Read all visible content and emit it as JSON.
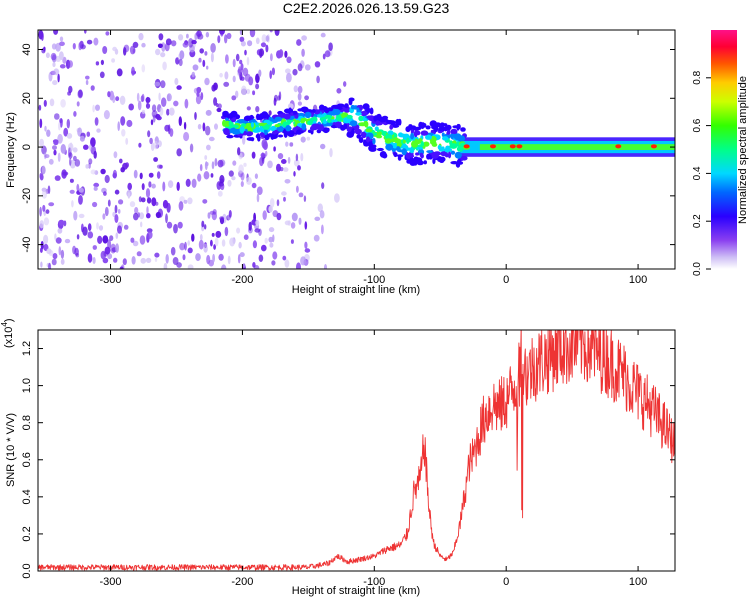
{
  "title": "C2E2.2026.026.13.59.G23",
  "chart_data": [
    {
      "type": "heatmap",
      "name": "spectrogram",
      "xlabel": "Height of straight line (km)",
      "ylabel": "Frequency (Hz)",
      "xlim": [
        -355,
        128
      ],
      "ylim": [
        -50,
        48
      ],
      "xticks": [
        -300,
        -200,
        -100,
        0,
        100
      ],
      "yticks": [
        -40,
        -20,
        0,
        20,
        40
      ],
      "colorbar": {
        "label": "Normalized spectral amplitude",
        "range": [
          0.0,
          1.0
        ],
        "ticks": [
          0.0,
          0.2,
          0.4,
          0.6,
          0.8
        ],
        "ticklabels": [
          "0.0",
          "0.2",
          "0.4",
          "0.6",
          "0.8"
        ]
      },
      "description_regions": [
        {
          "x_range": [
            -355,
            -150
          ],
          "freq_range": [
            -50,
            48
          ],
          "amplitude": 0.05,
          "pattern": "scattered noise"
        },
        {
          "x_range": [
            -215,
            -35
          ],
          "freq_range": [
            -10,
            15
          ],
          "amplitude": 0.45,
          "pattern": "wandering band"
        },
        {
          "x_range": [
            -35,
            128
          ],
          "freq_range": [
            -2,
            3
          ],
          "amplitude": 0.7,
          "pattern": "steady tone near 0 Hz"
        }
      ],
      "ridge": {
        "x": [
          -215,
          -190,
          -165,
          -145,
          -130,
          -115,
          -100,
          -85,
          -70,
          -55,
          -40,
          -30,
          -10,
          10,
          40,
          80,
          128
        ],
        "freq": [
          9,
          8,
          10,
          11,
          12,
          13,
          6,
          3,
          1,
          2,
          1,
          0,
          1,
          0,
          0,
          0,
          0
        ]
      }
    },
    {
      "type": "line",
      "name": "snr",
      "xlabel": "Height of straight line (km)",
      "ylabel": "SNR (10 * V/V)",
      "scale_label": "(x10",
      "scale_exp": "4",
      "xlim": [
        -355,
        128
      ],
      "ylim": [
        0.0,
        1.3
      ],
      "xticks": [
        -300,
        -200,
        -100,
        0,
        100
      ],
      "yticks": [
        0.0,
        0.2,
        0.4,
        0.6,
        0.8,
        1.0,
        1.2
      ],
      "yticklabels": [
        "0.0",
        "0.2",
        "0.4",
        "0.6",
        "0.8",
        "1.0",
        "1.2"
      ],
      "series": [
        {
          "name": "SNR",
          "color": "#ee3333",
          "x": [
            -355,
            -300,
            -250,
            -200,
            -150,
            -135,
            -128,
            -120,
            -100,
            -90,
            -80,
            -75,
            -70,
            -65,
            -62,
            -60,
            -58,
            -55,
            -50,
            -45,
            -40,
            -35,
            -30,
            -28,
            -25,
            -20,
            -15,
            -10,
            -5,
            0,
            5,
            10,
            12,
            15,
            20,
            30,
            40,
            50,
            55,
            60,
            70,
            80,
            90,
            100,
            110,
            120,
            128
          ],
          "y": [
            0.02,
            0.02,
            0.02,
            0.02,
            0.02,
            0.04,
            0.08,
            0.05,
            0.08,
            0.12,
            0.14,
            0.2,
            0.42,
            0.5,
            0.7,
            0.48,
            0.3,
            0.15,
            0.08,
            0.06,
            0.1,
            0.25,
            0.48,
            0.58,
            0.62,
            0.75,
            0.85,
            0.9,
            0.88,
            0.92,
            0.98,
            1.05,
            1.22,
            1.05,
            1.1,
            1.15,
            1.2,
            1.22,
            1.24,
            1.22,
            1.18,
            1.12,
            1.05,
            0.96,
            0.88,
            0.78,
            0.68
          ]
        }
      ]
    }
  ]
}
